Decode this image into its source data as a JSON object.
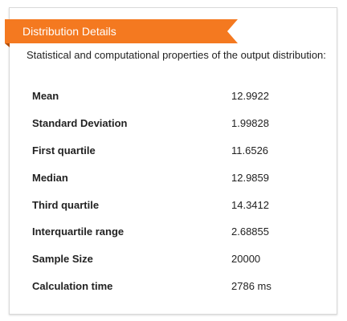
{
  "panel": {
    "title": "Distribution Details",
    "description": "Statistical and computational properties of the output distribution:",
    "accent_color": "#f47920"
  },
  "properties": [
    {
      "label": "Mean",
      "value": "12.9922"
    },
    {
      "label": "Standard Deviation",
      "value": "1.99828"
    },
    {
      "label": "First quartile",
      "value": "11.6526"
    },
    {
      "label": "Median",
      "value": "12.9859"
    },
    {
      "label": "Third quartile",
      "value": "14.3412"
    },
    {
      "label": "Interquartile range",
      "value": "2.68855"
    },
    {
      "label": "Sample Size",
      "value": "20000"
    },
    {
      "label": "Calculation time",
      "value": "2786 ms"
    }
  ]
}
